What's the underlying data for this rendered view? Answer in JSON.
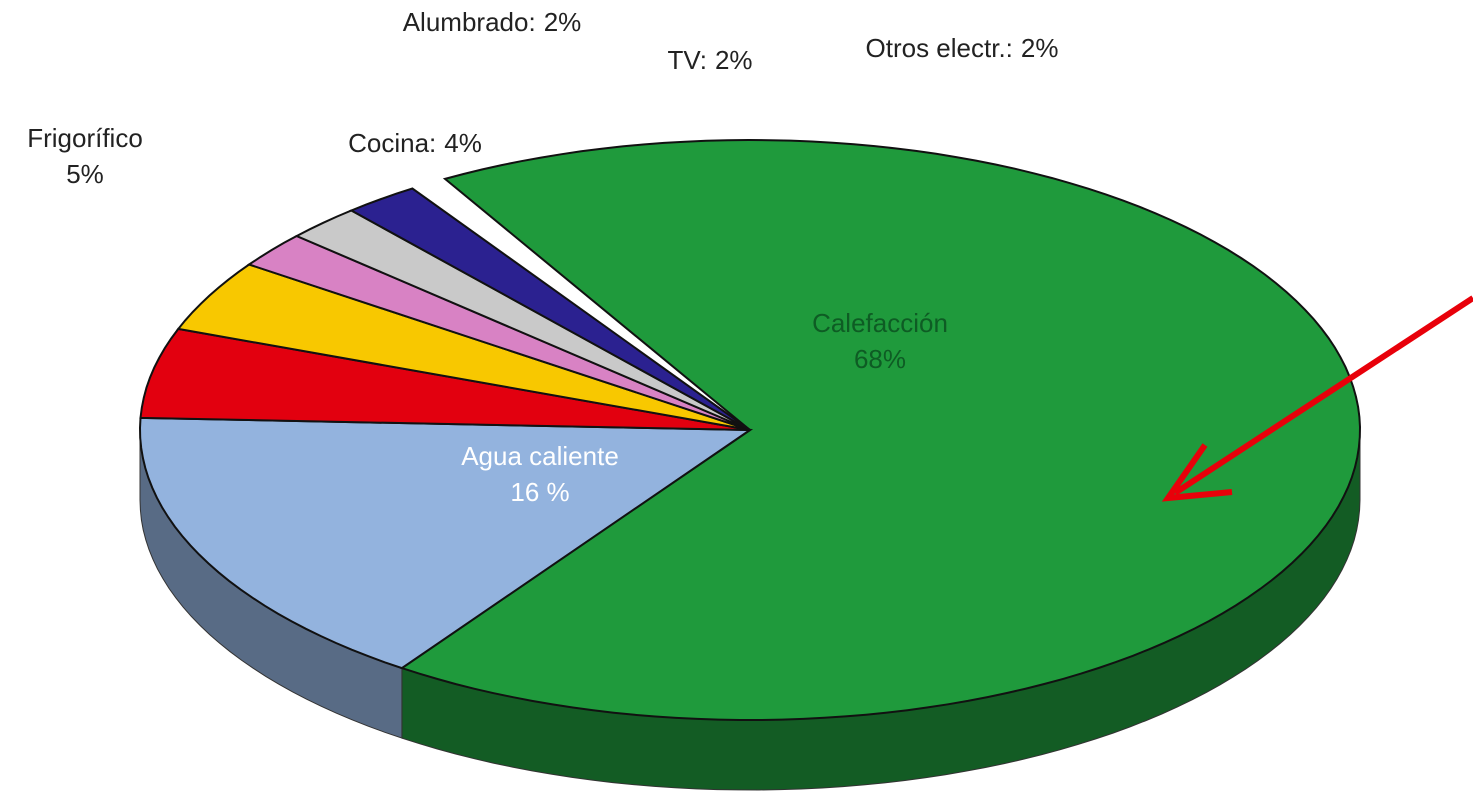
{
  "chart_data": {
    "type": "pie",
    "categories": [
      "Calefacción",
      "Agua caliente",
      "Frigorífico",
      "Cocina:",
      "Alumbrado:",
      "TV:",
      "Otros electr.:"
    ],
    "values": [
      68,
      16,
      5,
      4,
      2,
      2,
      2
    ],
    "value_labels": [
      "68%",
      "16 %",
      "5%",
      "4%",
      "2%",
      "2%",
      "2%"
    ],
    "colors": [
      "#1f9a3c",
      "#93b3de",
      "#e2000f",
      "#f8c800",
      "#d882c4",
      "#c9c9c9",
      "#2b2190"
    ]
  }
}
